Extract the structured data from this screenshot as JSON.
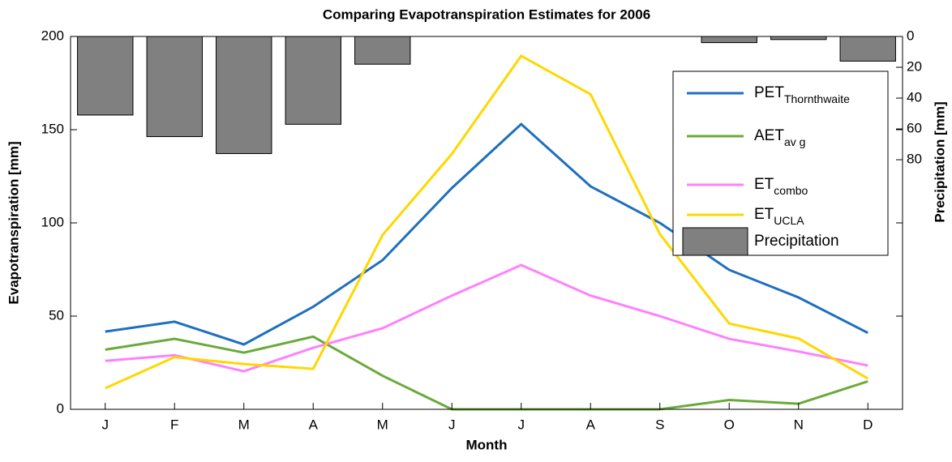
{
  "chart_data": {
    "type": "line",
    "title": "Comparing Evapotranspiration Estimates for 2006",
    "x_label": "Month",
    "y_label": "Evapotranspiration [mm]",
    "y2_label": "Precipitation [mm]",
    "categories": [
      "J",
      "F",
      "M",
      "A",
      "M",
      "J",
      "J",
      "A",
      "S",
      "O",
      "N",
      "D"
    ],
    "ylim": [
      0,
      200
    ],
    "yticks": [
      0,
      50,
      100,
      150,
      200
    ],
    "y2lim": [
      0,
      242
    ],
    "y2ticks": [
      0,
      20,
      40,
      60,
      80
    ],
    "y2_reversed": true,
    "legend": "upper right",
    "series": [
      {
        "name": "PET",
        "subscript": "Thornthwaite",
        "color": "#1f6fbf",
        "values": [
          41.7,
          47,
          34.8,
          55,
          80,
          118.7,
          153,
          119.6,
          100,
          74.8,
          60,
          41
        ]
      },
      {
        "name": "AET",
        "subscript": "av g",
        "color": "#6aaa3a",
        "values": [
          32,
          37.8,
          30.4,
          39,
          18,
          0,
          0,
          0,
          0,
          5,
          3,
          15
        ]
      },
      {
        "name": "ET",
        "subscript": "combo",
        "color": "#ff80ff",
        "values": [
          26,
          29,
          20.4,
          33,
          43.5,
          61,
          77.4,
          61,
          50,
          37.8,
          31,
          23.5
        ]
      },
      {
        "name": "ET",
        "subscript": "UCLA",
        "color": "#ffd700",
        "values": [
          11.3,
          28,
          24.3,
          21.7,
          93.5,
          137,
          189.6,
          169,
          94,
          46,
          38,
          16.5
        ]
      },
      {
        "name": "Precipitation",
        "type": "bar",
        "axis": "y2",
        "color": "#808080",
        "values": [
          51,
          65,
          76,
          57,
          18,
          0,
          0,
          0,
          0,
          4,
          2,
          16
        ]
      }
    ]
  }
}
